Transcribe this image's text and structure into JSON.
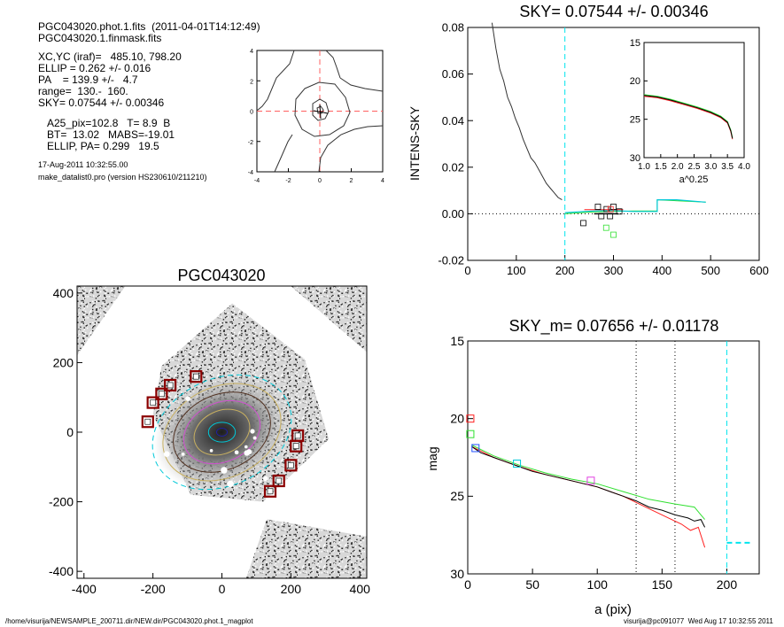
{
  "header": {
    "file_line": "PGC043020.phot.1.fits  (2011-04-01T14:12:49)",
    "mask_line": "PGC043020.1.finmask.fits",
    "params": [
      "XC,YC (iraf)=   485.10, 798.20",
      "ELLIP = 0.262 +/- 0.016",
      "PA    = 139.9 +/-   4.7",
      "range=  130.-  160.",
      "SKY= 0.07544 +/- 0.00346"
    ],
    "results": [
      "A25_pix=102.8   T= 8.9  B",
      "BT=  13.02   MABS=-19.01",
      "ELLIP, PA= 0.299   19.5"
    ],
    "date_line": "17-Aug-2011 10:32:55.00",
    "program_line": "make_datalist0.pro (version HS230610/211210)"
  },
  "footer": {
    "path": "/home/visurija/NEWSAMPLE_200711.dir/NEW.dir/PGC043020.phot.1_magplot",
    "user": "visurija@pc091077  Wed Aug 17 10:32:55 2011"
  },
  "colors": {
    "sky_marker": "#00e5ee",
    "red": "#ff2020",
    "green": "#30e030",
    "blue": "#2050ff",
    "cyan": "#00c8d8",
    "magenta": "#e040e0",
    "mask_square": "#8b0000",
    "contour_red": "#ff6060"
  },
  "chart_data": [
    {
      "id": "center",
      "type": "contour",
      "xlim": [
        -4,
        4
      ],
      "ylim": [
        -4,
        4
      ],
      "xticks": [
        "-4",
        "-2",
        "0",
        "2",
        "4"
      ],
      "yticks": [
        "-4",
        "-2",
        "0",
        "2",
        "4"
      ],
      "center": [
        0,
        0
      ]
    },
    {
      "id": "sky",
      "type": "line",
      "title": "SKY= 0.07544 +/- 0.00346",
      "ylabel": "INTENS-SKY",
      "xlim": [
        0,
        600
      ],
      "ylim": [
        -0.02,
        0.08
      ],
      "xticks": [
        "0",
        "100",
        "200",
        "300",
        "400",
        "500",
        "600"
      ],
      "yticks": [
        "-0.02",
        "0.00",
        "0.02",
        "0.04",
        "0.06",
        "0.08"
      ],
      "sky_range_marker": 200,
      "profile": [
        [
          50,
          0.082
        ],
        [
          58,
          0.071
        ],
        [
          66,
          0.062
        ],
        [
          74,
          0.057
        ],
        [
          82,
          0.05
        ],
        [
          90,
          0.046
        ],
        [
          98,
          0.041
        ],
        [
          106,
          0.037
        ],
        [
          114,
          0.032
        ],
        [
          122,
          0.028
        ],
        [
          130,
          0.024
        ],
        [
          138,
          0.022
        ],
        [
          146,
          0.019
        ],
        [
          154,
          0.016
        ],
        [
          162,
          0.013
        ],
        [
          170,
          0.011
        ],
        [
          178,
          0.009
        ],
        [
          186,
          0.007
        ],
        [
          194,
          0.006
        ]
      ],
      "outer_cyan": [
        [
          200,
          0.0005
        ],
        [
          240,
          0.001
        ],
        [
          290,
          0.0015
        ],
        [
          340,
          0.001
        ],
        [
          390,
          0.001
        ],
        [
          390,
          0.006
        ],
        [
          430,
          0.006
        ],
        [
          490,
          0.005
        ]
      ],
      "outer_green": [
        [
          200,
          0.0
        ],
        [
          260,
          0.0008
        ],
        [
          300,
          0.001
        ],
        [
          340,
          0.0012
        ],
        [
          390,
          0.0012
        ],
        [
          390,
          0.006
        ],
        [
          490,
          0.005
        ]
      ],
      "outer_black": [
        [
          260,
          0.0
        ],
        [
          310,
          0.0
        ]
      ],
      "outer_red": [
        [
          240,
          0.0018
        ],
        [
          320,
          0.0018
        ]
      ],
      "squares_black": [
        [
          268,
          0.003
        ],
        [
          275,
          -0.001
        ],
        [
          286,
          0.002
        ],
        [
          293,
          -0.001
        ],
        [
          300,
          0.003
        ],
        [
          312,
          0.001
        ],
        [
          238,
          -0.004
        ]
      ],
      "squares_green": [
        [
          285,
          -0.006
        ],
        [
          300,
          -0.009
        ]
      ],
      "squares_red": [
        [
          294,
          0.002
        ]
      ],
      "inset": {
        "xlim": [
          1.0,
          4.0
        ],
        "ylim": [
          30,
          15
        ],
        "xticks": [
          "1.0",
          "1.5",
          "2.0",
          "2.5",
          "3.0",
          "3.5",
          "4.0"
        ],
        "yticks": [
          "15",
          "20",
          "25",
          "30"
        ],
        "xlabel": "a^0.25",
        "curve": [
          [
            1.0,
            21.9
          ],
          [
            1.4,
            22.1
          ],
          [
            1.8,
            22.5
          ],
          [
            2.2,
            23.0
          ],
          [
            2.6,
            23.5
          ],
          [
            3.0,
            24.1
          ],
          [
            3.3,
            24.7
          ],
          [
            3.5,
            25.4
          ],
          [
            3.6,
            26.5
          ],
          [
            3.65,
            27.5
          ]
        ]
      }
    },
    {
      "id": "image",
      "type": "image",
      "title": "PGC043020",
      "xlim": [
        -420,
        420
      ],
      "ylim": [
        -420,
        420
      ],
      "xticks": [
        "-400",
        "-200",
        "0",
        "200",
        "400"
      ],
      "yticks": [
        "-400",
        "-200",
        "0",
        "200",
        "400"
      ],
      "ellipse_outer": {
        "a": 210,
        "b": 155,
        "pa_deg": 20
      },
      "ellipse_inner": {
        "a": 130,
        "b": 95,
        "pa_deg": 20
      },
      "masked_stars": [
        [
          -75,
          160
        ],
        [
          -150,
          135
        ],
        [
          -175,
          110
        ],
        [
          -200,
          85
        ],
        [
          -215,
          30
        ],
        [
          220,
          -10
        ],
        [
          215,
          -40
        ],
        [
          200,
          -95
        ],
        [
          165,
          -140
        ],
        [
          140,
          -170
        ]
      ]
    },
    {
      "id": "mag",
      "type": "line",
      "title": "SKY_m=  0.07656 +/- 0.01178",
      "xlabel": "a (pix)",
      "ylabel": "mag",
      "xlim": [
        0,
        225
      ],
      "ylim": [
        30,
        15
      ],
      "xticks": [
        "0",
        "50",
        "100",
        "150",
        "200"
      ],
      "yticks": [
        "15",
        "20",
        "25",
        "30"
      ],
      "range_lines": [
        130,
        160
      ],
      "sky_marker_x": 200,
      "sky_marker_mag": 28.0,
      "profile_black": [
        [
          3,
          21.8
        ],
        [
          10,
          22.2
        ],
        [
          20,
          22.5
        ],
        [
          30,
          22.8
        ],
        [
          40,
          23.1
        ],
        [
          50,
          23.4
        ],
        [
          60,
          23.6
        ],
        [
          70,
          23.8
        ],
        [
          80,
          24.0
        ],
        [
          90,
          24.2
        ],
        [
          100,
          24.4
        ],
        [
          110,
          24.7
        ],
        [
          120,
          25.0
        ],
        [
          130,
          25.3
        ],
        [
          140,
          25.7
        ],
        [
          150,
          25.9
        ],
        [
          160,
          26.2
        ],
        [
          170,
          26.4
        ],
        [
          175,
          26.6
        ],
        [
          180,
          26.5
        ],
        [
          183,
          27.0
        ]
      ],
      "profile_green": [
        [
          3,
          21.7
        ],
        [
          20,
          22.4
        ],
        [
          40,
          23.0
        ],
        [
          60,
          23.5
        ],
        [
          80,
          23.9
        ],
        [
          100,
          24.2
        ],
        [
          120,
          24.7
        ],
        [
          140,
          25.2
        ],
        [
          160,
          25.5
        ],
        [
          175,
          25.7
        ],
        [
          180,
          26.2
        ],
        [
          183,
          26.5
        ]
      ],
      "profile_red": [
        [
          3,
          21.8
        ],
        [
          20,
          22.5
        ],
        [
          40,
          23.1
        ],
        [
          60,
          23.6
        ],
        [
          80,
          24.0
        ],
        [
          100,
          24.4
        ],
        [
          120,
          25.0
        ],
        [
          140,
          25.8
        ],
        [
          155,
          26.4
        ],
        [
          165,
          26.8
        ],
        [
          172,
          27.2
        ],
        [
          178,
          27.0
        ],
        [
          183,
          28.3
        ]
      ],
      "markers": [
        {
          "x": 2,
          "y": 20.0,
          "color": "red"
        },
        {
          "x": 2,
          "y": 21.0,
          "color": "green"
        },
        {
          "x": 6,
          "y": 21.9,
          "color": "blue"
        },
        {
          "x": 38,
          "y": 22.9,
          "color": "cyan"
        },
        {
          "x": 95,
          "y": 24.0,
          "color": "magenta"
        }
      ]
    }
  ]
}
